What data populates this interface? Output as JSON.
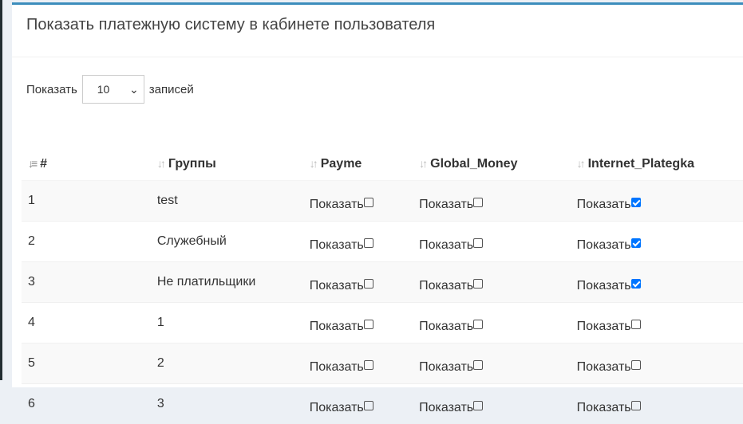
{
  "title": "Показать платежную систему в кабинете пользователя",
  "length": {
    "prefix": "Показать",
    "value": "10",
    "suffix": "записей"
  },
  "columns": [
    "#",
    "Группы",
    "Payme",
    "Global_Money",
    "Internet_Plategka"
  ],
  "show_label": "Показать",
  "rows": [
    {
      "id": "1",
      "group": "test",
      "payme": false,
      "global_money": false,
      "internet_plategka": true
    },
    {
      "id": "2",
      "group": "Служебный",
      "payme": false,
      "global_money": false,
      "internet_plategka": true
    },
    {
      "id": "3",
      "group": "Не платильщики",
      "payme": false,
      "global_money": false,
      "internet_plategka": true
    },
    {
      "id": "4",
      "group": "1",
      "payme": false,
      "global_money": false,
      "internet_plategka": false
    },
    {
      "id": "5",
      "group": "2",
      "payme": false,
      "global_money": false,
      "internet_plategka": false
    },
    {
      "id": "6",
      "group": "3",
      "payme": false,
      "global_money": false,
      "internet_plategka": false
    }
  ]
}
